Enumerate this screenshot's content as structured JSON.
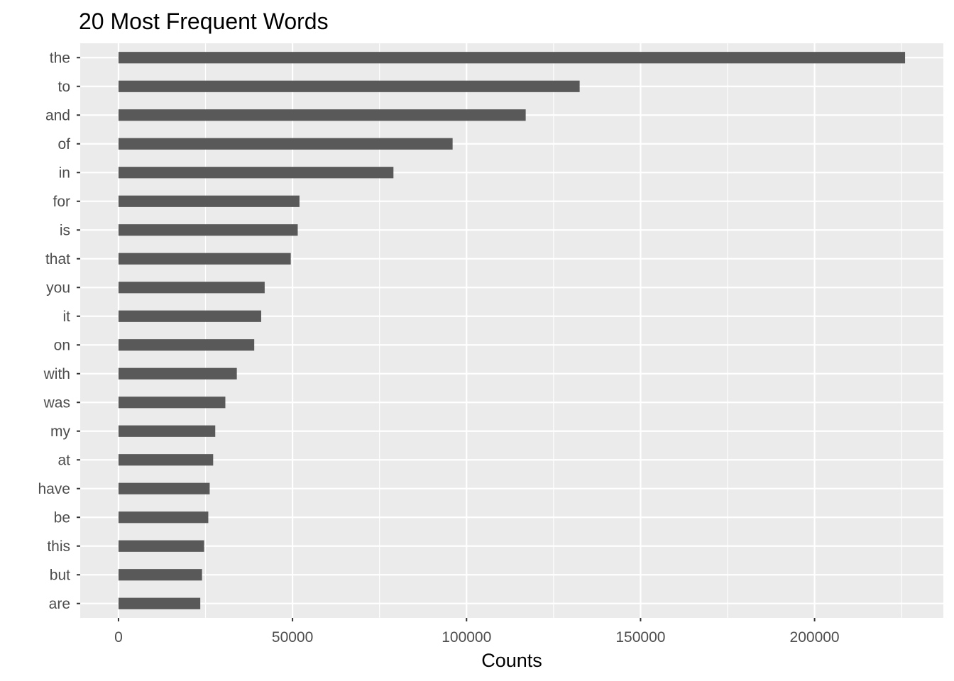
{
  "chart_data": {
    "type": "bar",
    "orientation": "horizontal",
    "title": "20 Most Frequent Words",
    "xlabel": "Counts",
    "ylabel": "",
    "categories": [
      "the",
      "to",
      "and",
      "of",
      "in",
      "for",
      "is",
      "that",
      "you",
      "it",
      "on",
      "with",
      "was",
      "my",
      "at",
      "have",
      "be",
      "this",
      "but",
      "are"
    ],
    "values": [
      226000,
      132500,
      117000,
      96000,
      79000,
      52000,
      51500,
      49500,
      42000,
      41000,
      39000,
      34000,
      30700,
      27800,
      27200,
      26200,
      25800,
      24600,
      24000,
      23500
    ],
    "xlim": [
      -11000,
      237000
    ],
    "xticks": [
      0,
      50000,
      100000,
      150000,
      200000
    ],
    "xtick_labels": [
      "0",
      "50000",
      "100000",
      "150000",
      "200000"
    ],
    "grid": true,
    "colors": {
      "bar": "#595959",
      "panel_background": "#ebebeb",
      "grid": "#ffffff",
      "tick_text": "#4d4d4d",
      "tick_mark": "#333333"
    }
  }
}
